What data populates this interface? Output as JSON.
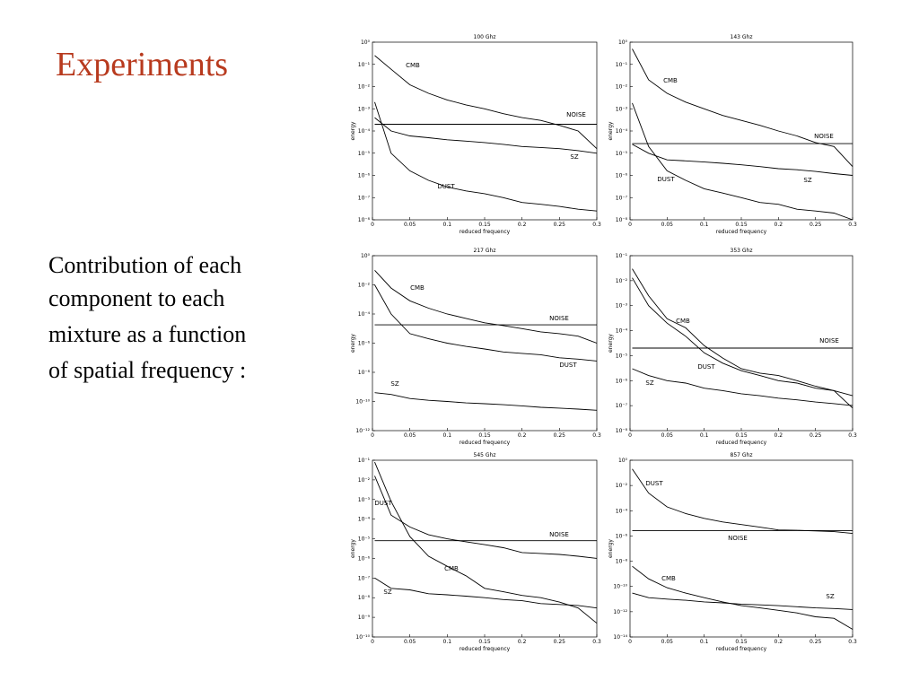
{
  "slide": {
    "title": "Experiments",
    "body": [
      "Contribution of each",
      "component to each",
      "mixture as a function",
      "of spatial frequency  :"
    ]
  },
  "chart_data": [
    {
      "type": "line",
      "title": "100 Ghz",
      "x_label": "reduced frequency",
      "y_label": "energy",
      "log_y": true,
      "x": [
        0.003,
        0.025,
        0.05,
        0.075,
        0.1,
        0.125,
        0.15,
        0.175,
        0.2,
        0.225,
        0.25,
        0.275,
        0.3
      ],
      "xlim": [
        0,
        0.3
      ],
      "xticks": [
        0,
        0.05,
        0.1,
        0.15,
        0.2,
        0.25,
        0.3
      ],
      "ylim": [
        1e-08,
        1
      ],
      "yticks": [
        {
          "value": 1,
          "label": "10⁰"
        },
        {
          "value": 0.1,
          "label": "10⁻¹"
        },
        {
          "value": 0.01,
          "label": "10⁻²"
        },
        {
          "value": 0.001,
          "label": "10⁻³"
        },
        {
          "value": 0.0001,
          "label": "10⁻⁴"
        },
        {
          "value": 1e-05,
          "label": "10⁻⁵"
        },
        {
          "value": 1e-06,
          "label": "10⁻⁶"
        },
        {
          "value": 1e-07,
          "label": "10⁻⁷"
        },
        {
          "value": 1e-08,
          "label": "10⁻⁸"
        }
      ],
      "series": [
        {
          "name": "CMB",
          "color": "#000000",
          "values": [
            0.25,
            0.06,
            0.012,
            0.005,
            0.0025,
            0.0015,
            0.001,
            0.0006,
            0.0004,
            0.0003,
            0.00018,
            0.0001,
            1.6e-05
          ]
        },
        {
          "name": "NOISE",
          "color": "#000000",
          "values": [
            0.0002,
            0.0002,
            0.0002,
            0.0002,
            0.0002,
            0.0002,
            0.0002,
            0.0002,
            0.0002,
            0.0002,
            0.0002,
            0.0002,
            0.0002
          ]
        },
        {
          "name": "SZ",
          "color": "#000000",
          "values": [
            0.0004,
            0.0001,
            6e-05,
            5e-05,
            4e-05,
            3.5e-05,
            3e-05,
            2.5e-05,
            2e-05,
            1.8e-05,
            1.6e-05,
            1.3e-05,
            1e-05
          ]
        },
        {
          "name": "DUST",
          "color": "#000000",
          "values": [
            0.002,
            1e-05,
            1.6e-06,
            6e-07,
            3e-07,
            2e-07,
            1.5e-07,
            1e-07,
            6e-08,
            5e-08,
            4e-08,
            3e-08,
            2.5e-08
          ]
        }
      ]
    },
    {
      "type": "line",
      "title": "143 Ghz",
      "x_label": "reduced frequency",
      "y_label": "energy",
      "log_y": true,
      "x": [
        0.003,
        0.025,
        0.05,
        0.075,
        0.1,
        0.125,
        0.15,
        0.175,
        0.2,
        0.225,
        0.25,
        0.275,
        0.3
      ],
      "xlim": [
        0,
        0.3
      ],
      "xticks": [
        0,
        0.05,
        0.1,
        0.15,
        0.2,
        0.25,
        0.3
      ],
      "ylim": [
        1e-08,
        1
      ],
      "yticks": [
        {
          "value": 1,
          "label": "10⁰"
        },
        {
          "value": 0.1,
          "label": "10⁻¹"
        },
        {
          "value": 0.01,
          "label": "10⁻²"
        },
        {
          "value": 0.001,
          "label": "10⁻³"
        },
        {
          "value": 0.0001,
          "label": "10⁻⁴"
        },
        {
          "value": 1e-05,
          "label": "10⁻⁵"
        },
        {
          "value": 1e-06,
          "label": "10⁻⁶"
        },
        {
          "value": 1e-07,
          "label": "10⁻⁷"
        },
        {
          "value": 1e-08,
          "label": "10⁻⁸"
        }
      ],
      "series": [
        {
          "name": "CMB",
          "color": "#000000",
          "values": [
            0.5,
            0.02,
            0.005,
            0.002,
            0.001,
            0.0005,
            0.0003,
            0.00018,
            0.0001,
            6e-05,
            3e-05,
            2e-05,
            2.5e-06
          ]
        },
        {
          "name": "NOISE",
          "color": "#000000",
          "values": [
            2.7e-05,
            2.7e-05,
            2.7e-05,
            2.7e-05,
            2.7e-05,
            2.7e-05,
            2.7e-05,
            2.7e-05,
            2.7e-05,
            2.7e-05,
            2.7e-05,
            2.7e-05,
            2.7e-05
          ]
        },
        {
          "name": "SZ",
          "color": "#000000",
          "values": [
            2.5e-05,
            1e-05,
            5e-06,
            4.5e-06,
            4e-06,
            3.5e-06,
            3e-06,
            2.5e-06,
            2e-06,
            1.8e-06,
            1.5e-06,
            1.2e-06,
            1e-06
          ]
        },
        {
          "name": "DUST",
          "color": "#000000",
          "values": [
            0.0018,
            2e-05,
            1.6e-06,
            6e-07,
            2.5e-07,
            1.6e-07,
            1e-07,
            6e-08,
            5e-08,
            3e-08,
            2.5e-08,
            2e-08,
            1e-08
          ]
        }
      ]
    },
    {
      "type": "line",
      "title": "217 Ghz",
      "x_label": "reduced frequency",
      "y_label": "energy",
      "log_y": true,
      "x": [
        0.003,
        0.025,
        0.05,
        0.075,
        0.1,
        0.125,
        0.15,
        0.175,
        0.2,
        0.225,
        0.25,
        0.275,
        0.3
      ],
      "xlim": [
        0,
        0.3
      ],
      "xticks": [
        0,
        0.05,
        0.1,
        0.15,
        0.2,
        0.25,
        0.3
      ],
      "ylim": [
        1e-12,
        1
      ],
      "yticks": [
        {
          "value": 1,
          "label": "10⁰"
        },
        {
          "value": 0.01,
          "label": "10⁻²"
        },
        {
          "value": 0.0001,
          "label": "10⁻⁴"
        },
        {
          "value": 1e-06,
          "label": "10⁻⁶"
        },
        {
          "value": 1e-08,
          "label": "10⁻⁸"
        },
        {
          "value": 1e-10,
          "label": "10⁻¹⁰"
        },
        {
          "value": 1e-12,
          "label": "10⁻¹²"
        }
      ],
      "series": [
        {
          "name": "CMB",
          "color": "#000000",
          "values": [
            0.1,
            0.006,
            0.0008,
            0.00025,
            0.0001,
            5e-05,
            2.5e-05,
            1.6e-05,
            1e-05,
            6e-06,
            4.5e-06,
            3e-06,
            1e-06
          ]
        },
        {
          "name": "NOISE",
          "color": "#000000",
          "values": [
            1.8e-05,
            1.8e-05,
            1.8e-05,
            1.8e-05,
            1.8e-05,
            1.8e-05,
            1.8e-05,
            1.8e-05,
            1.8e-05,
            1.8e-05,
            1.8e-05,
            1.8e-05,
            1.8e-05
          ]
        },
        {
          "name": "DUST",
          "color": "#000000",
          "values": [
            0.01,
            0.0001,
            4.5e-06,
            2e-06,
            1e-06,
            6e-07,
            4e-07,
            2.5e-07,
            2e-07,
            1.6e-07,
            1e-07,
            8e-08,
            6e-08
          ]
        },
        {
          "name": "SZ",
          "color": "#000000",
          "values": [
            4e-10,
            3e-10,
            1.6e-10,
            1.2e-10,
            1e-10,
            8e-11,
            7e-11,
            6e-11,
            5e-11,
            4e-11,
            3.5e-11,
            3e-11,
            2.5e-11
          ]
        }
      ]
    },
    {
      "type": "line",
      "title": "353 Ghz",
      "x_label": "reduced frequency",
      "y_label": "energy",
      "log_y": true,
      "x": [
        0.003,
        0.025,
        0.05,
        0.075,
        0.1,
        0.125,
        0.15,
        0.175,
        0.2,
        0.225,
        0.25,
        0.275,
        0.3
      ],
      "xlim": [
        0,
        0.3
      ],
      "xticks": [
        0,
        0.05,
        0.1,
        0.15,
        0.2,
        0.25,
        0.3
      ],
      "ylim": [
        1e-08,
        0.1
      ],
      "yticks": [
        {
          "value": 0.1,
          "label": "10⁻¹"
        },
        {
          "value": 0.01,
          "label": "10⁻²"
        },
        {
          "value": 0.001,
          "label": "10⁻³"
        },
        {
          "value": 0.0001,
          "label": "10⁻⁴"
        },
        {
          "value": 1e-05,
          "label": "10⁻⁵"
        },
        {
          "value": 1e-06,
          "label": "10⁻⁶"
        },
        {
          "value": 1e-07,
          "label": "10⁻⁷"
        },
        {
          "value": 1e-08,
          "label": "10⁻⁸"
        }
      ],
      "series": [
        {
          "name": "CMB",
          "color": "#000000",
          "values": [
            0.03,
            0.0025,
            0.0003,
            0.00013,
            2.5e-05,
            8e-06,
            3e-06,
            2e-06,
            1.6e-06,
            1e-06,
            6e-07,
            4e-07,
            2.5e-07
          ]
        },
        {
          "name": "NOISE",
          "color": "#000000",
          "values": [
            2e-05,
            2e-05,
            2e-05,
            2e-05,
            2e-05,
            2e-05,
            2e-05,
            2e-05,
            2e-05,
            2e-05,
            2e-05,
            2e-05,
            2e-05
          ]
        },
        {
          "name": "DUST",
          "color": "#000000",
          "values": [
            0.013,
            0.001,
            0.0002,
            6e-05,
            1.3e-05,
            5e-06,
            2.5e-06,
            1.6e-06,
            1e-06,
            8e-07,
            5e-07,
            4e-07,
            8e-08
          ]
        },
        {
          "name": "SZ",
          "color": "#000000",
          "values": [
            3e-06,
            1.6e-06,
            1e-06,
            8e-07,
            5e-07,
            4e-07,
            3e-07,
            2.5e-07,
            2e-07,
            1.7e-07,
            1.4e-07,
            1.2e-07,
            1e-07
          ]
        }
      ]
    },
    {
      "type": "line",
      "title": "545 Ghz",
      "x_label": "reduced frequency",
      "y_label": "energy",
      "log_y": true,
      "x": [
        0.003,
        0.025,
        0.05,
        0.075,
        0.1,
        0.125,
        0.15,
        0.175,
        0.2,
        0.225,
        0.25,
        0.275,
        0.3
      ],
      "xlim": [
        0,
        0.3
      ],
      "xticks": [
        0,
        0.05,
        0.1,
        0.15,
        0.2,
        0.25,
        0.3
      ],
      "ylim": [
        1e-10,
        0.1
      ],
      "yticks": [
        {
          "value": 0.1,
          "label": "10⁻¹"
        },
        {
          "value": 0.01,
          "label": "10⁻²"
        },
        {
          "value": 0.001,
          "label": "10⁻³"
        },
        {
          "value": 0.0001,
          "label": "10⁻⁴"
        },
        {
          "value": 1e-05,
          "label": "10⁻⁵"
        },
        {
          "value": 1e-06,
          "label": "10⁻⁶"
        },
        {
          "value": 1e-07,
          "label": "10⁻⁷"
        },
        {
          "value": 1e-08,
          "label": "10⁻⁸"
        },
        {
          "value": 1e-09,
          "label": "10⁻⁹"
        },
        {
          "value": 1e-10,
          "label": "10⁻¹⁰"
        }
      ],
      "series": [
        {
          "name": "DUST",
          "color": "#000000",
          "values": [
            0.016,
            0.00016,
            4e-05,
            1.6e-05,
            1e-05,
            7e-06,
            5e-06,
            3.5e-06,
            2e-06,
            1.8e-06,
            1.6e-06,
            1.3e-06,
            1e-06
          ]
        },
        {
          "name": "NOISE",
          "color": "#000000",
          "values": [
            8e-06,
            8e-06,
            8e-06,
            8e-06,
            8e-06,
            8e-06,
            8e-06,
            8e-06,
            8e-06,
            8e-06,
            8e-06,
            8e-06,
            8e-06
          ]
        },
        {
          "name": "CMB",
          "color": "#000000",
          "values": [
            0.08,
            0.0008,
            1.3e-05,
            1.3e-06,
            4e-07,
            1.3e-07,
            3e-08,
            2e-08,
            1.3e-08,
            1e-08,
            6e-09,
            3e-09,
            5e-10
          ]
        },
        {
          "name": "SZ",
          "color": "#000000",
          "values": [
            1e-07,
            3e-08,
            2.5e-08,
            1.6e-08,
            1.4e-08,
            1.2e-08,
            1e-08,
            8e-09,
            7e-09,
            5e-09,
            4.5e-09,
            4e-09,
            3e-09
          ]
        }
      ]
    },
    {
      "type": "line",
      "title": "857 Ghz",
      "x_label": "reduced frequency",
      "y_label": "energy",
      "log_y": true,
      "x": [
        0.003,
        0.025,
        0.05,
        0.075,
        0.1,
        0.125,
        0.15,
        0.175,
        0.2,
        0.225,
        0.25,
        0.275,
        0.3
      ],
      "xlim": [
        0,
        0.3
      ],
      "xticks": [
        0,
        0.05,
        0.1,
        0.15,
        0.2,
        0.25,
        0.3
      ],
      "ylim": [
        1e-14,
        1
      ],
      "yticks": [
        {
          "value": 1,
          "label": "10⁰"
        },
        {
          "value": 0.01,
          "label": "10⁻²"
        },
        {
          "value": 0.0001,
          "label": "10⁻⁴"
        },
        {
          "value": 1e-06,
          "label": "10⁻⁶"
        },
        {
          "value": 1e-08,
          "label": "10⁻⁸"
        },
        {
          "value": 1e-10,
          "label": "10⁻¹⁰"
        },
        {
          "value": 1e-12,
          "label": "10⁻¹²"
        },
        {
          "value": 1e-14,
          "label": "10⁻¹⁴"
        }
      ],
      "series": [
        {
          "name": "DUST",
          "color": "#000000",
          "values": [
            0.2,
            0.0025,
            0.0002,
            6e-05,
            2.5e-05,
            1.3e-05,
            8e-06,
            5e-06,
            3e-06,
            2.8e-06,
            2.5e-06,
            2.2e-06,
            1.6e-06
          ]
        },
        {
          "name": "NOISE",
          "color": "#000000",
          "values": [
            2.7e-06,
            2.7e-06,
            2.7e-06,
            2.7e-06,
            2.7e-06,
            2.7e-06,
            2.7e-06,
            2.7e-06,
            2.7e-06,
            2.7e-06,
            2.7e-06,
            2.7e-06,
            2.7e-06
          ]
        },
        {
          "name": "CMB",
          "color": "#000000",
          "values": [
            4e-09,
            4e-10,
            8e-11,
            3e-11,
            1.3e-11,
            6e-12,
            3e-12,
            2e-12,
            1.3e-12,
            8e-13,
            4e-13,
            3e-13,
            4e-14
          ]
        },
        {
          "name": "SZ",
          "color": "#000000",
          "values": [
            3e-11,
            1.3e-11,
            1e-11,
            8e-12,
            6e-12,
            5e-12,
            4e-12,
            3.5e-12,
            3e-12,
            2.5e-12,
            2e-12,
            1.8e-12,
            1.5e-12
          ]
        }
      ]
    }
  ]
}
